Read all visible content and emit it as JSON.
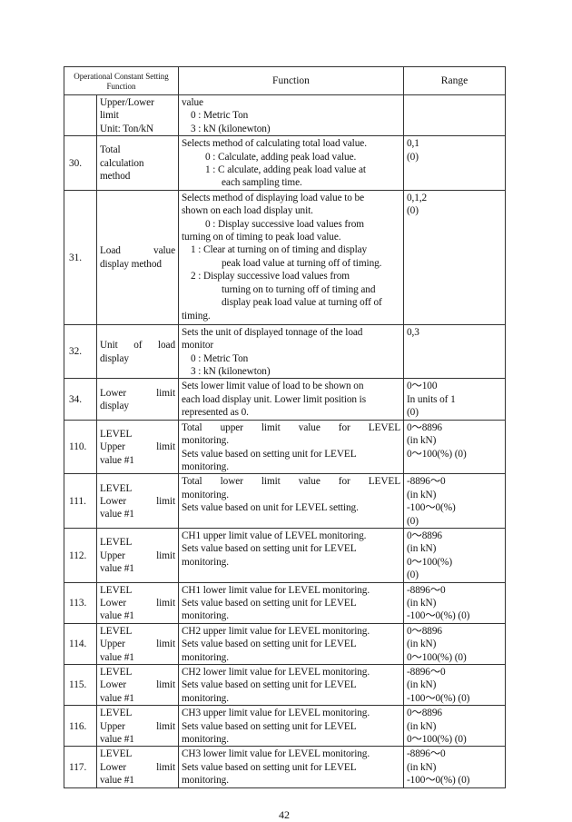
{
  "header": {
    "col1": "Operational Constant Setting Function",
    "col2": "Function",
    "col3": "Range"
  },
  "rows": [
    {
      "num": "",
      "name": [
        "Upper/Lower",
        "limit",
        "Unit: Ton/kN"
      ],
      "function": [
        "value",
        "0 : Metric Ton",
        "3 : kN (kilonewton)"
      ],
      "range": []
    },
    {
      "num": "30.",
      "name": [
        "Total",
        "calculation",
        "method"
      ],
      "function": [
        "Selects method of calculating total load value.",
        "0 : Calculate, adding peak load value.",
        "1 : C alculate, adding peak load value at",
        "each sampling time."
      ],
      "range": [
        "0,1",
        "(0)"
      ]
    },
    {
      "num": "31.",
      "name": [
        "Load value",
        "display method"
      ],
      "function": [
        "Selects method of displaying load value to be",
        "shown on each load display unit.",
        "0 : Display successive load values from",
        "turning on of timing to peak load value.",
        "1 : Clear at turning on of timing and display",
        "peak load value at turning off of timing.",
        "2 : Display successive load values from",
        "turning on to turning off of timing and",
        "display peak load value at turning off of",
        "timing."
      ],
      "range": [
        "0,1,2",
        "(0)"
      ]
    },
    {
      "num": "32.",
      "name": [
        "Unit of load",
        "display"
      ],
      "function": [
        "Sets the unit of displayed tonnage of the load",
        "monitor",
        "0 : Metric Ton",
        "3 : kN (kilonewton)"
      ],
      "range": [
        "0,3"
      ]
    },
    {
      "num": "34.",
      "name": [
        "Lower limit",
        "display"
      ],
      "function": [
        "Sets lower limit value of load to be shown on",
        "each load display unit. Lower limit position is",
        "represented as 0."
      ],
      "range": [
        "0～100",
        "In units of 1",
        "(0)"
      ]
    },
    {
      "num": "110.",
      "name": [
        "LEVEL",
        "Upper limit",
        "value #1"
      ],
      "function": [
        "Total upper limit value for LEVEL",
        "monitoring.",
        "Sets value based on setting unit for LEVEL",
        "monitoring."
      ],
      "range": [
        "0～8896",
        "(in kN)",
        "0～100(%) (0)"
      ]
    },
    {
      "num": "111.",
      "name": [
        "LEVEL",
        "Lower limit",
        "value #1"
      ],
      "function": [
        "Total lower limit value for LEVEL",
        "monitoring.",
        "Sets value based on unit for LEVEL setting."
      ],
      "range": [
        "-8896～0",
        "(in kN)",
        "-100～0(%)",
        "(0)"
      ]
    },
    {
      "num": "112.",
      "name": [
        "LEVEL",
        "Upper limit",
        "value #1"
      ],
      "function": [
        "CH1 upper limit value of LEVEL monitoring.",
        "Sets value based on setting unit for LEVEL",
        "monitoring."
      ],
      "range": [
        "0～8896",
        "(in kN)",
        "0～100(%)",
        "(0)"
      ]
    },
    {
      "num": "113.",
      "name": [
        "LEVEL",
        "Lower limit",
        "value #1"
      ],
      "function": [
        "CH1 lower limit value for LEVEL monitoring.",
        "Sets value based on setting unit for LEVEL",
        "monitoring."
      ],
      "range": [
        "-8896～0",
        "(in kN)",
        "-100～0(%) (0)"
      ]
    },
    {
      "num": "114.",
      "name": [
        "LEVEL",
        "Upper limit",
        "value #1"
      ],
      "function": [
        "CH2 upper limit value for LEVEL monitoring.",
        "Sets value based on setting unit for LEVEL",
        "monitoring."
      ],
      "range": [
        "0～8896",
        "(in kN)",
        "0～100(%) (0)"
      ]
    },
    {
      "num": "115.",
      "name": [
        "LEVEL",
        "Lower limit",
        "value #1"
      ],
      "function": [
        "CH2 lower limit value for LEVEL monitoring.",
        "Sets value based on setting unit for LEVEL",
        "monitoring."
      ],
      "range": [
        "-8896～0",
        "(in kN)",
        "-100～0(%) (0)"
      ]
    },
    {
      "num": "116.",
      "name": [
        "LEVEL",
        "Upper limit",
        "value #1"
      ],
      "function": [
        "CH3 upper limit value for LEVEL monitoring.",
        "Sets value based on setting unit for LEVEL",
        "monitoring."
      ],
      "range": [
        "0～8896",
        "(in kN)",
        "0～100(%) (0)"
      ]
    },
    {
      "num": "117.",
      "name": [
        "LEVEL",
        "Lower limit",
        "value #1"
      ],
      "function": [
        "CH3 lower limit value for LEVEL monitoring.",
        "Sets value based on setting unit for LEVEL",
        "monitoring."
      ],
      "range": [
        "-8896～0",
        "(in kN)",
        "-100～0(%) (0)"
      ]
    }
  ],
  "page_number": "42"
}
